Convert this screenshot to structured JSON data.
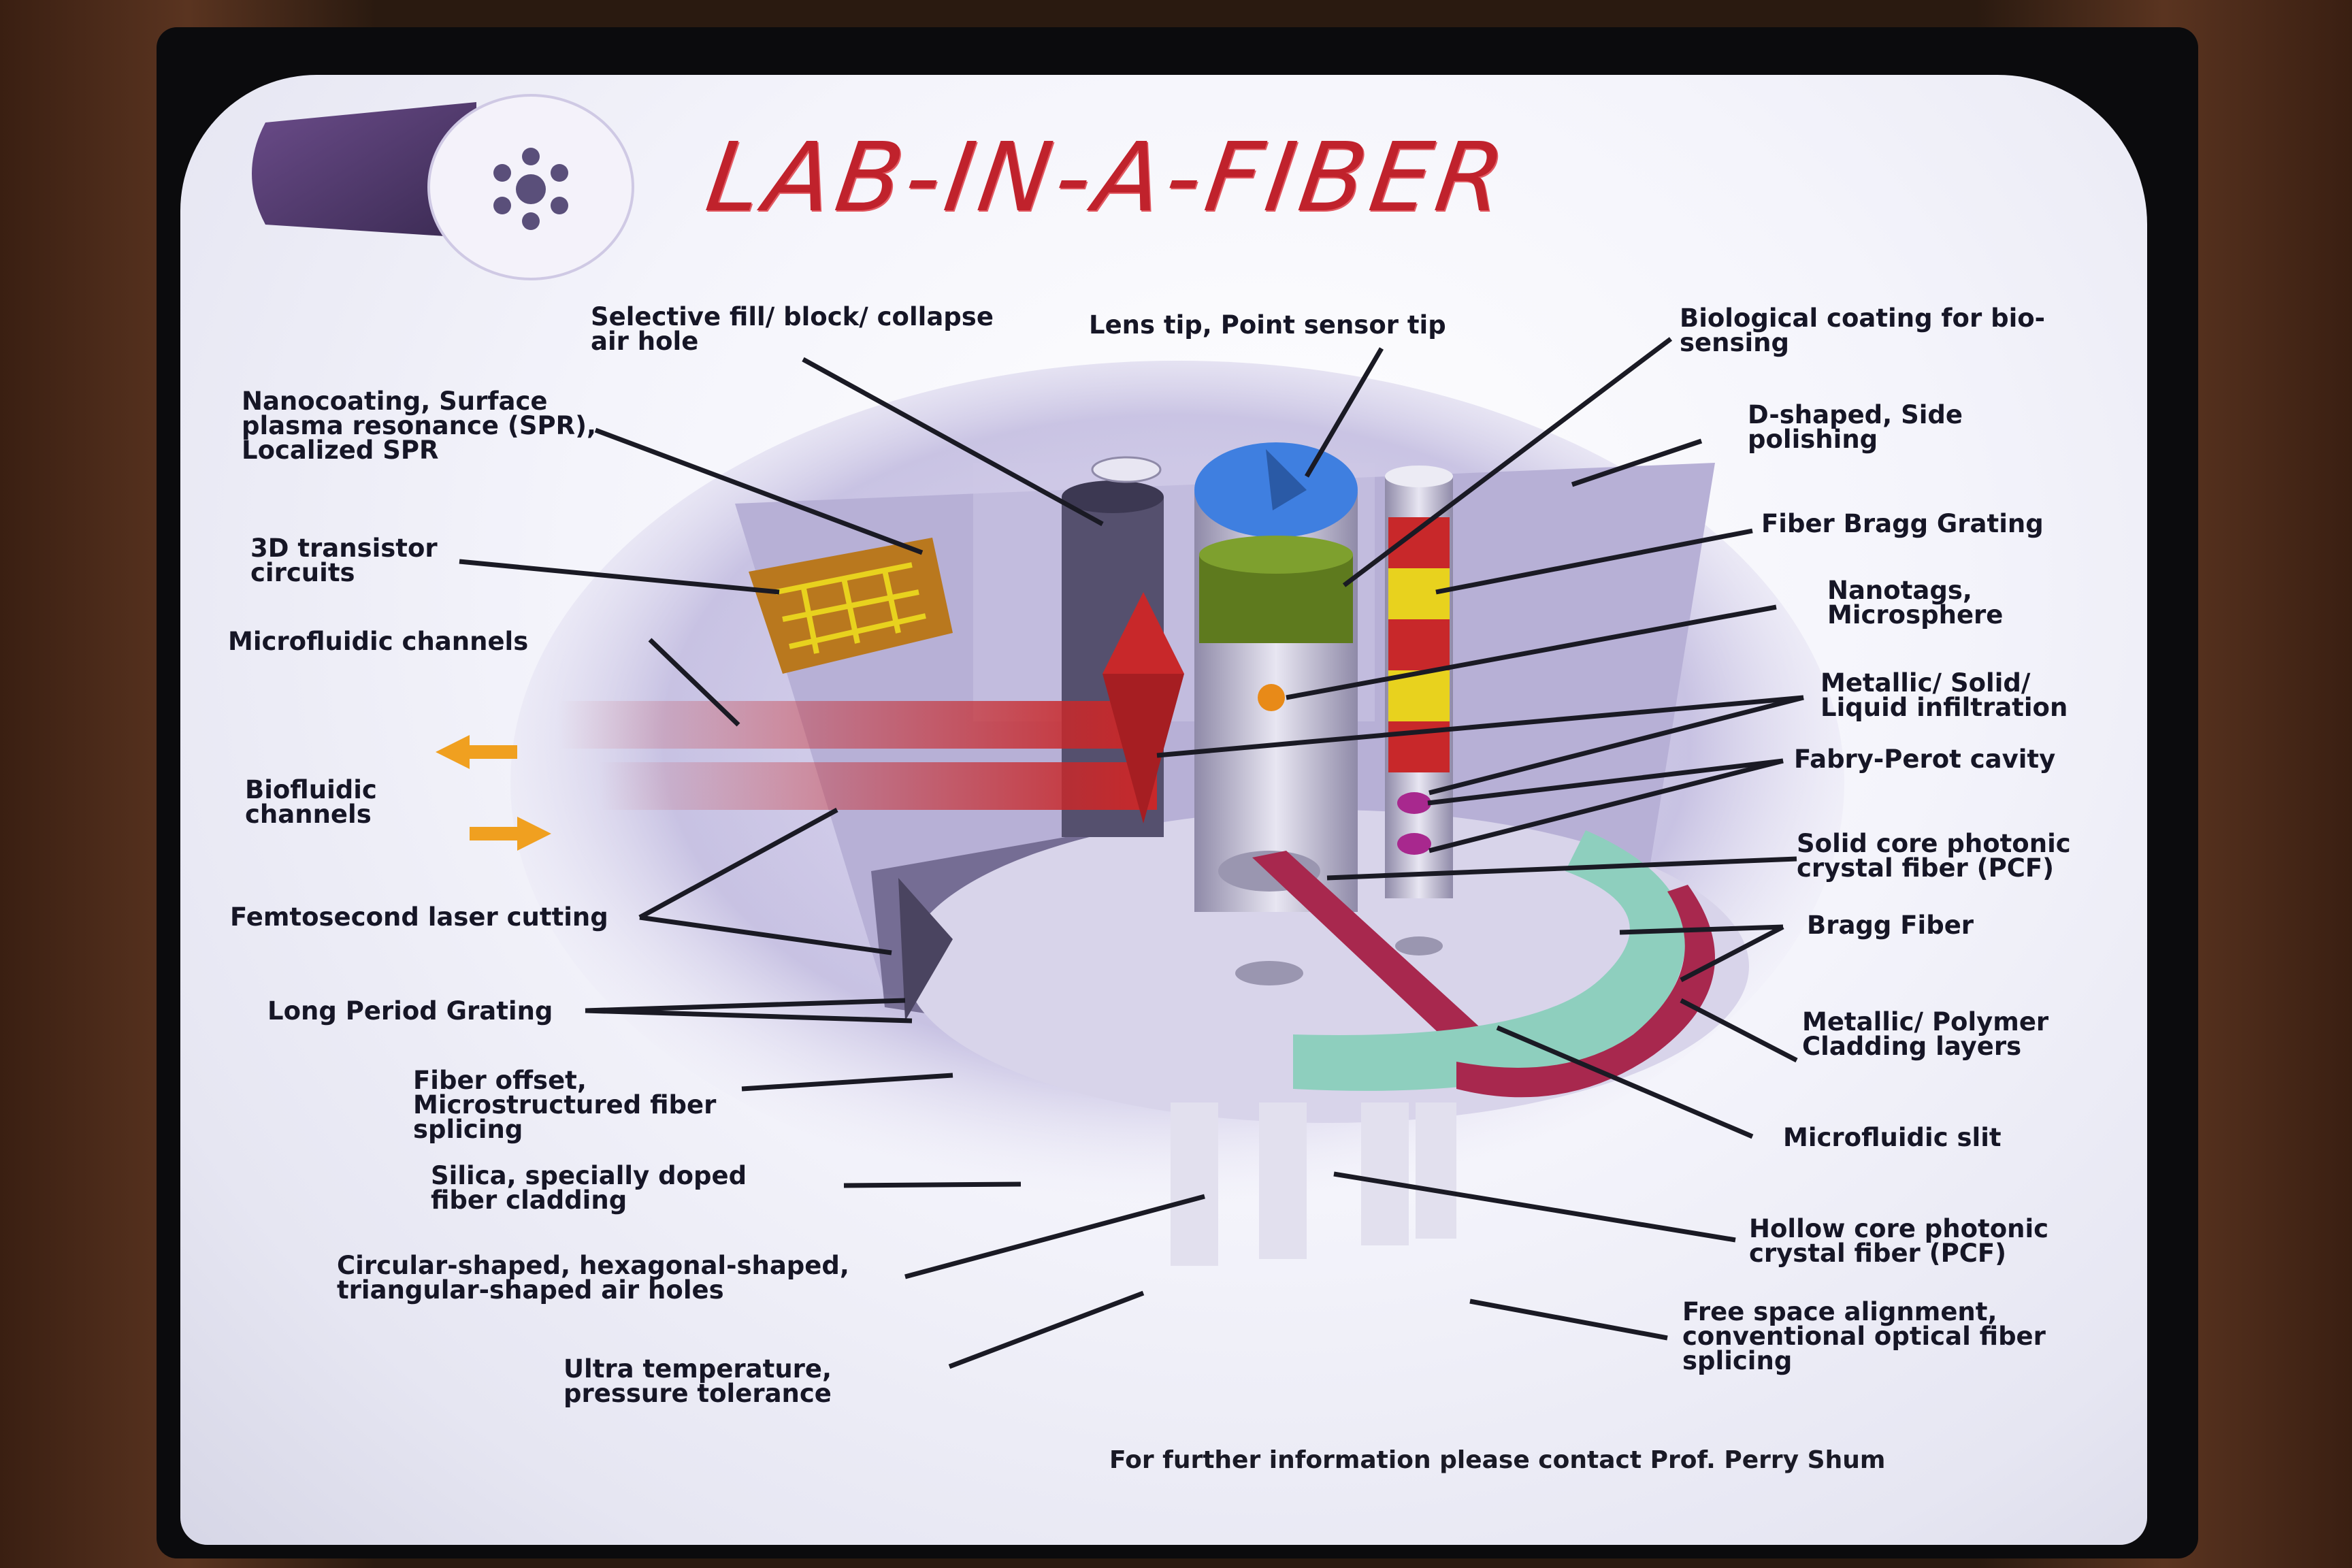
{
  "title": "LAB-IN-A-FIBER",
  "footer": "For further information please contact Prof. Perry Shum",
  "labels": {
    "selective_fill": "Selective fill/ block/ collapse\nair hole",
    "lens_tip": "Lens tip, Point sensor tip",
    "bio_coating": "Biological coating for bio-\nsensing",
    "nanocoating": "Nanocoating, Surface\nplasma resonance (SPR),\nLocalized SPR",
    "d_shaped": "D-shaped, Side\npolishing",
    "transistor": "3D transistor\ncircuits",
    "fbg": "Fiber Bragg Grating",
    "microfluidic_channels": "Microfluidic channels",
    "nanotags": "Nanotags,\nMicrosphere",
    "metallic_infiltration": "Metallic/ Solid/\nLiquid infiltration",
    "biofluidic": "Biofluidic\nchannels",
    "fabry_perot": "Fabry-Perot cavity",
    "solid_core_pcf": "Solid core photonic\ncrystal fiber (PCF)",
    "femtosecond": "Femtosecond laser cutting",
    "bragg_fiber": "Bragg Fiber",
    "lpg": "Long Period Grating",
    "cladding_layers": "Metallic/ Polymer\nCladding layers",
    "fiber_offset": "Fiber offset,\nMicrostructured fiber\nsplicing",
    "microfluidic_slit": "Microfluidic slit",
    "silica": "Silica, specially doped\nfiber cladding",
    "hollow_core_pcf": "Hollow core photonic\ncrystal fiber (PCF)",
    "air_holes": "Circular-shaped, hexagonal-shaped,\ntriangular-shaped air holes",
    "free_space": "Free space alignment,\nconventional optical fiber\nsplicing",
    "ultra_temp": "Ultra temperature,\npressure tolerance"
  },
  "colors": {
    "title": "#c0222c",
    "fiber_body": "#a8a2cc",
    "red": "#c8282a",
    "yellow": "#e8d21e",
    "green": "#5e7a1e",
    "blue": "#3f7fe0",
    "teal": "#8ecfbe",
    "magenta": "#a8284e",
    "arrow_orange": "#f0a020",
    "gold": "#b9781e"
  }
}
